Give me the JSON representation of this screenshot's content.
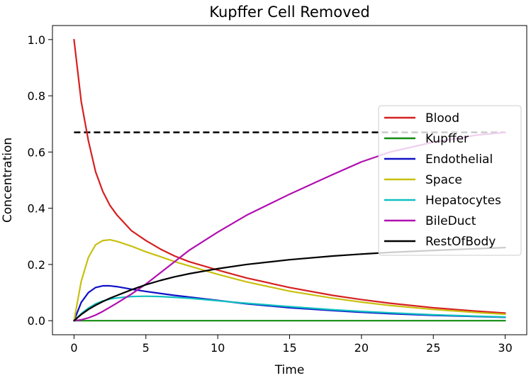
{
  "chart_data": {
    "type": "line",
    "title": "Kupffer Cell Removed",
    "xlabel": "Time",
    "ylabel": "Concentration",
    "xlim": [
      -1.5,
      31.5
    ],
    "ylim": [
      -0.05,
      1.05
    ],
    "xticks": [
      0,
      5,
      10,
      15,
      20,
      25,
      30
    ],
    "yticks": [
      0.0,
      0.2,
      0.4,
      0.6,
      0.8,
      1.0
    ],
    "xtick_labels": [
      "0",
      "5",
      "10",
      "15",
      "20",
      "25",
      "30"
    ],
    "ytick_labels": [
      "0.0",
      "0.2",
      "0.4",
      "0.6",
      "0.8",
      "1.0"
    ],
    "legend_position": "right",
    "grid": false,
    "x": [
      0,
      0.5,
      1,
      1.5,
      2,
      2.5,
      3,
      4,
      5,
      6,
      7,
      8,
      10,
      12,
      15,
      18,
      20,
      22,
      25,
      28,
      30
    ],
    "series": [
      {
        "name": "Blood",
        "color": "#d62020",
        "values": [
          1.0,
          0.78,
          0.64,
          0.53,
          0.46,
          0.41,
          0.375,
          0.32,
          0.285,
          0.255,
          0.23,
          0.21,
          0.18,
          0.152,
          0.118,
          0.09,
          0.075,
          0.062,
          0.046,
          0.034,
          0.027
        ]
      },
      {
        "name": "Kupffer",
        "color": "#128c12",
        "values": [
          0,
          0,
          0,
          0,
          0,
          0,
          0,
          0,
          0,
          0,
          0,
          0,
          0,
          0,
          0,
          0,
          0,
          0,
          0,
          0,
          0
        ]
      },
      {
        "name": "Endothelial",
        "color": "#1010c8",
        "values": [
          0,
          0.065,
          0.1,
          0.118,
          0.124,
          0.124,
          0.121,
          0.112,
          0.104,
          0.097,
          0.09,
          0.084,
          0.072,
          0.06,
          0.046,
          0.036,
          0.03,
          0.025,
          0.019,
          0.015,
          0.012
        ]
      },
      {
        "name": "Space",
        "color": "#c8c010",
        "values": [
          0,
          0.14,
          0.225,
          0.27,
          0.285,
          0.288,
          0.282,
          0.265,
          0.245,
          0.228,
          0.21,
          0.195,
          0.165,
          0.138,
          0.105,
          0.08,
          0.066,
          0.054,
          0.04,
          0.029,
          0.023
        ]
      },
      {
        "name": "Hepatocytes",
        "color": "#10c0c0",
        "values": [
          0,
          0.025,
          0.045,
          0.06,
          0.07,
          0.077,
          0.081,
          0.086,
          0.087,
          0.086,
          0.083,
          0.08,
          0.071,
          0.062,
          0.05,
          0.039,
          0.033,
          0.028,
          0.021,
          0.016,
          0.013
        ]
      },
      {
        "name": "BileDuct",
        "color": "#b010b0",
        "values": [
          0,
          0.003,
          0.01,
          0.02,
          0.033,
          0.048,
          0.063,
          0.095,
          0.13,
          0.17,
          0.21,
          0.25,
          0.315,
          0.375,
          0.45,
          0.52,
          0.565,
          0.6,
          0.635,
          0.66,
          0.67
        ]
      },
      {
        "name": "RestOfBody",
        "color": "#000000",
        "values": [
          0,
          0.022,
          0.04,
          0.055,
          0.068,
          0.08,
          0.09,
          0.11,
          0.128,
          0.143,
          0.156,
          0.167,
          0.185,
          0.2,
          0.217,
          0.23,
          0.237,
          0.243,
          0.25,
          0.256,
          0.26
        ]
      }
    ],
    "reference_line": {
      "y": 0.67,
      "style": "dashed",
      "color": "#000000",
      "x_range": [
        0,
        30
      ]
    }
  }
}
